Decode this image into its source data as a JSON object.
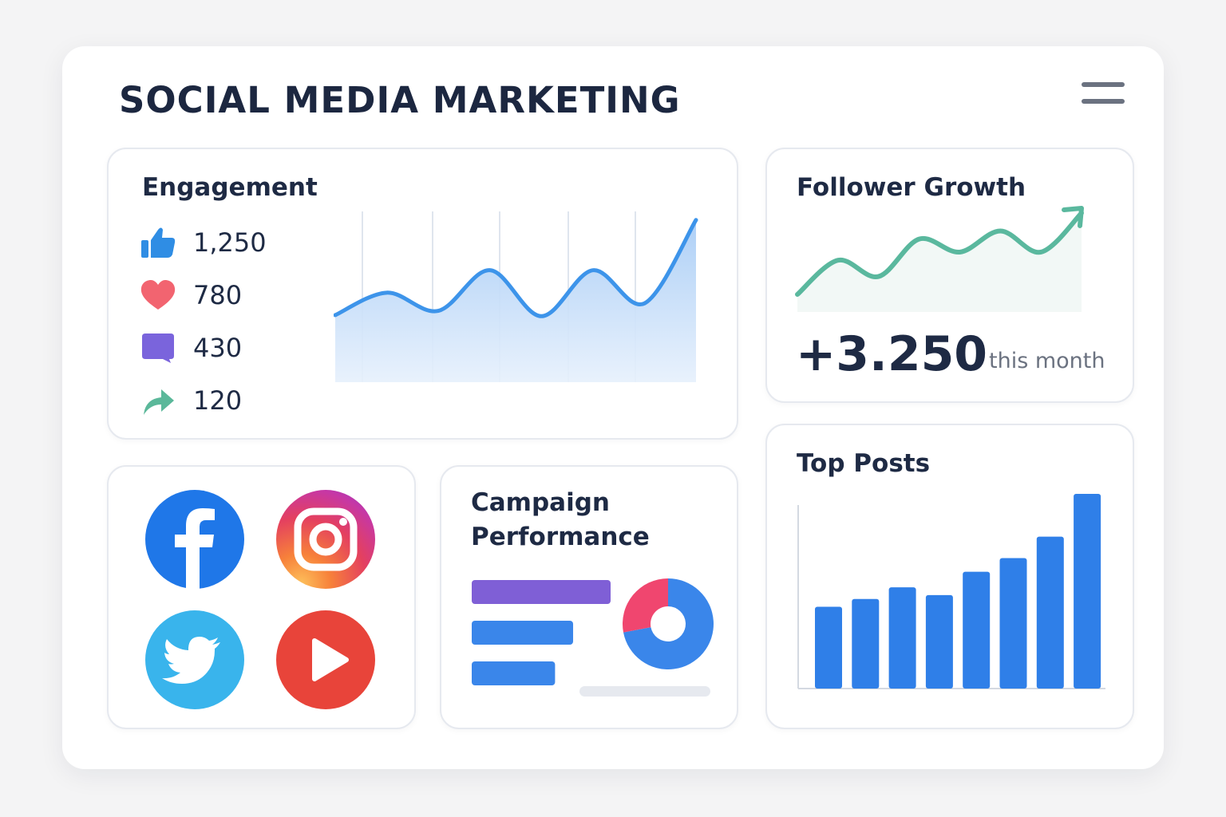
{
  "page": {
    "title": "SOCIAL MEDIA MARKETING"
  },
  "engagement": {
    "title": "Engagement",
    "metrics": [
      {
        "icon": "thumbs-up-icon",
        "value": "1,250",
        "color": "#2f8de4"
      },
      {
        "icon": "heart-icon",
        "value": "780",
        "color": "#f26470"
      },
      {
        "icon": "comment-icon",
        "value": "430",
        "color": "#7a64dc"
      },
      {
        "icon": "share-icon",
        "value": "120",
        "color": "#5bb89a"
      }
    ],
    "chart_data": {
      "type": "area",
      "values": [
        0.06,
        0.27,
        0.1,
        0.48,
        0.05,
        0.48,
        0.17,
        0.95
      ],
      "color": "#3d94ea",
      "grid": "vertical"
    }
  },
  "follower_growth": {
    "title": "Follower Growth",
    "value": "+3.250",
    "period": "this month",
    "color": "#5ab89e",
    "chart_data": {
      "type": "line",
      "values": [
        0.0,
        0.42,
        0.22,
        0.68,
        0.52,
        0.78,
        0.52,
        1.0
      ]
    }
  },
  "social": {
    "icons": [
      {
        "name": "facebook-icon",
        "color": "#1f77e8"
      },
      {
        "name": "instagram-icon",
        "color": "#e4405f"
      },
      {
        "name": "twitter-icon",
        "color": "#39b4ec"
      },
      {
        "name": "youtube-icon",
        "color": "#e8443a"
      }
    ]
  },
  "campaign": {
    "title_line1": "Campaign",
    "title_line2": "Performance",
    "bars": [
      {
        "value": 1.0,
        "color": "#7f5fd6"
      },
      {
        "value": 0.73,
        "color": "#3a86ea"
      },
      {
        "value": 0.6,
        "color": "#3a86ea"
      }
    ],
    "donut": [
      {
        "value": 0.72,
        "color": "#3a86ea"
      },
      {
        "value": 0.28,
        "color": "#f0466f"
      }
    ]
  },
  "top_posts": {
    "title": "Top Posts",
    "chart_data": {
      "type": "bar",
      "values": [
        0.42,
        0.46,
        0.52,
        0.48,
        0.6,
        0.67,
        0.78,
        1.0
      ],
      "color": "#2f7fe8"
    }
  }
}
